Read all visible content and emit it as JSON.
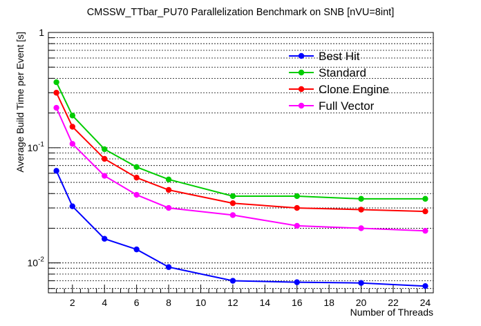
{
  "chart_data": {
    "type": "line",
    "title": "CMSSW_TTbar_PU70 Parallelization Benchmark on SNB [nVU=8int]",
    "xlabel": "Number of Threads",
    "ylabel": "Average Build Time per Event [s]",
    "xlim": [
      0.5,
      24.5
    ],
    "ylim": [
      0.0055,
      1
    ],
    "yscale": "log",
    "grid": "horizontal",
    "legend_position": "top-right",
    "x_ticks": [
      2,
      4,
      6,
      8,
      10,
      12,
      14,
      16,
      18,
      20,
      22,
      24
    ],
    "y_ticks": [
      {
        "value": 0.01,
        "base": "10",
        "exp": "-2"
      },
      {
        "value": 0.1,
        "base": "10",
        "exp": "-1"
      },
      {
        "value": 1,
        "base": "1",
        "exp": ""
      }
    ],
    "x": [
      1,
      2,
      4,
      6,
      8,
      12,
      16,
      20,
      24
    ],
    "series": [
      {
        "name": "Best Hit",
        "color": "#0000ff",
        "values": [
          0.063,
          0.031,
          0.0162,
          0.0131,
          0.0092,
          0.007,
          0.0068,
          0.0067,
          0.0063
        ]
      },
      {
        "name": "Standard",
        "color": "#00cc00",
        "values": [
          0.37,
          0.19,
          0.097,
          0.068,
          0.053,
          0.038,
          0.038,
          0.036,
          0.036
        ]
      },
      {
        "name": "Clone Engine",
        "color": "#ff0000",
        "values": [
          0.3,
          0.152,
          0.08,
          0.055,
          0.043,
          0.033,
          0.03,
          0.029,
          0.028
        ]
      },
      {
        "name": "Full Vector",
        "color": "#ff00ff",
        "values": [
          0.222,
          0.108,
          0.057,
          0.039,
          0.03,
          0.026,
          0.021,
          0.02,
          0.019
        ]
      }
    ]
  }
}
